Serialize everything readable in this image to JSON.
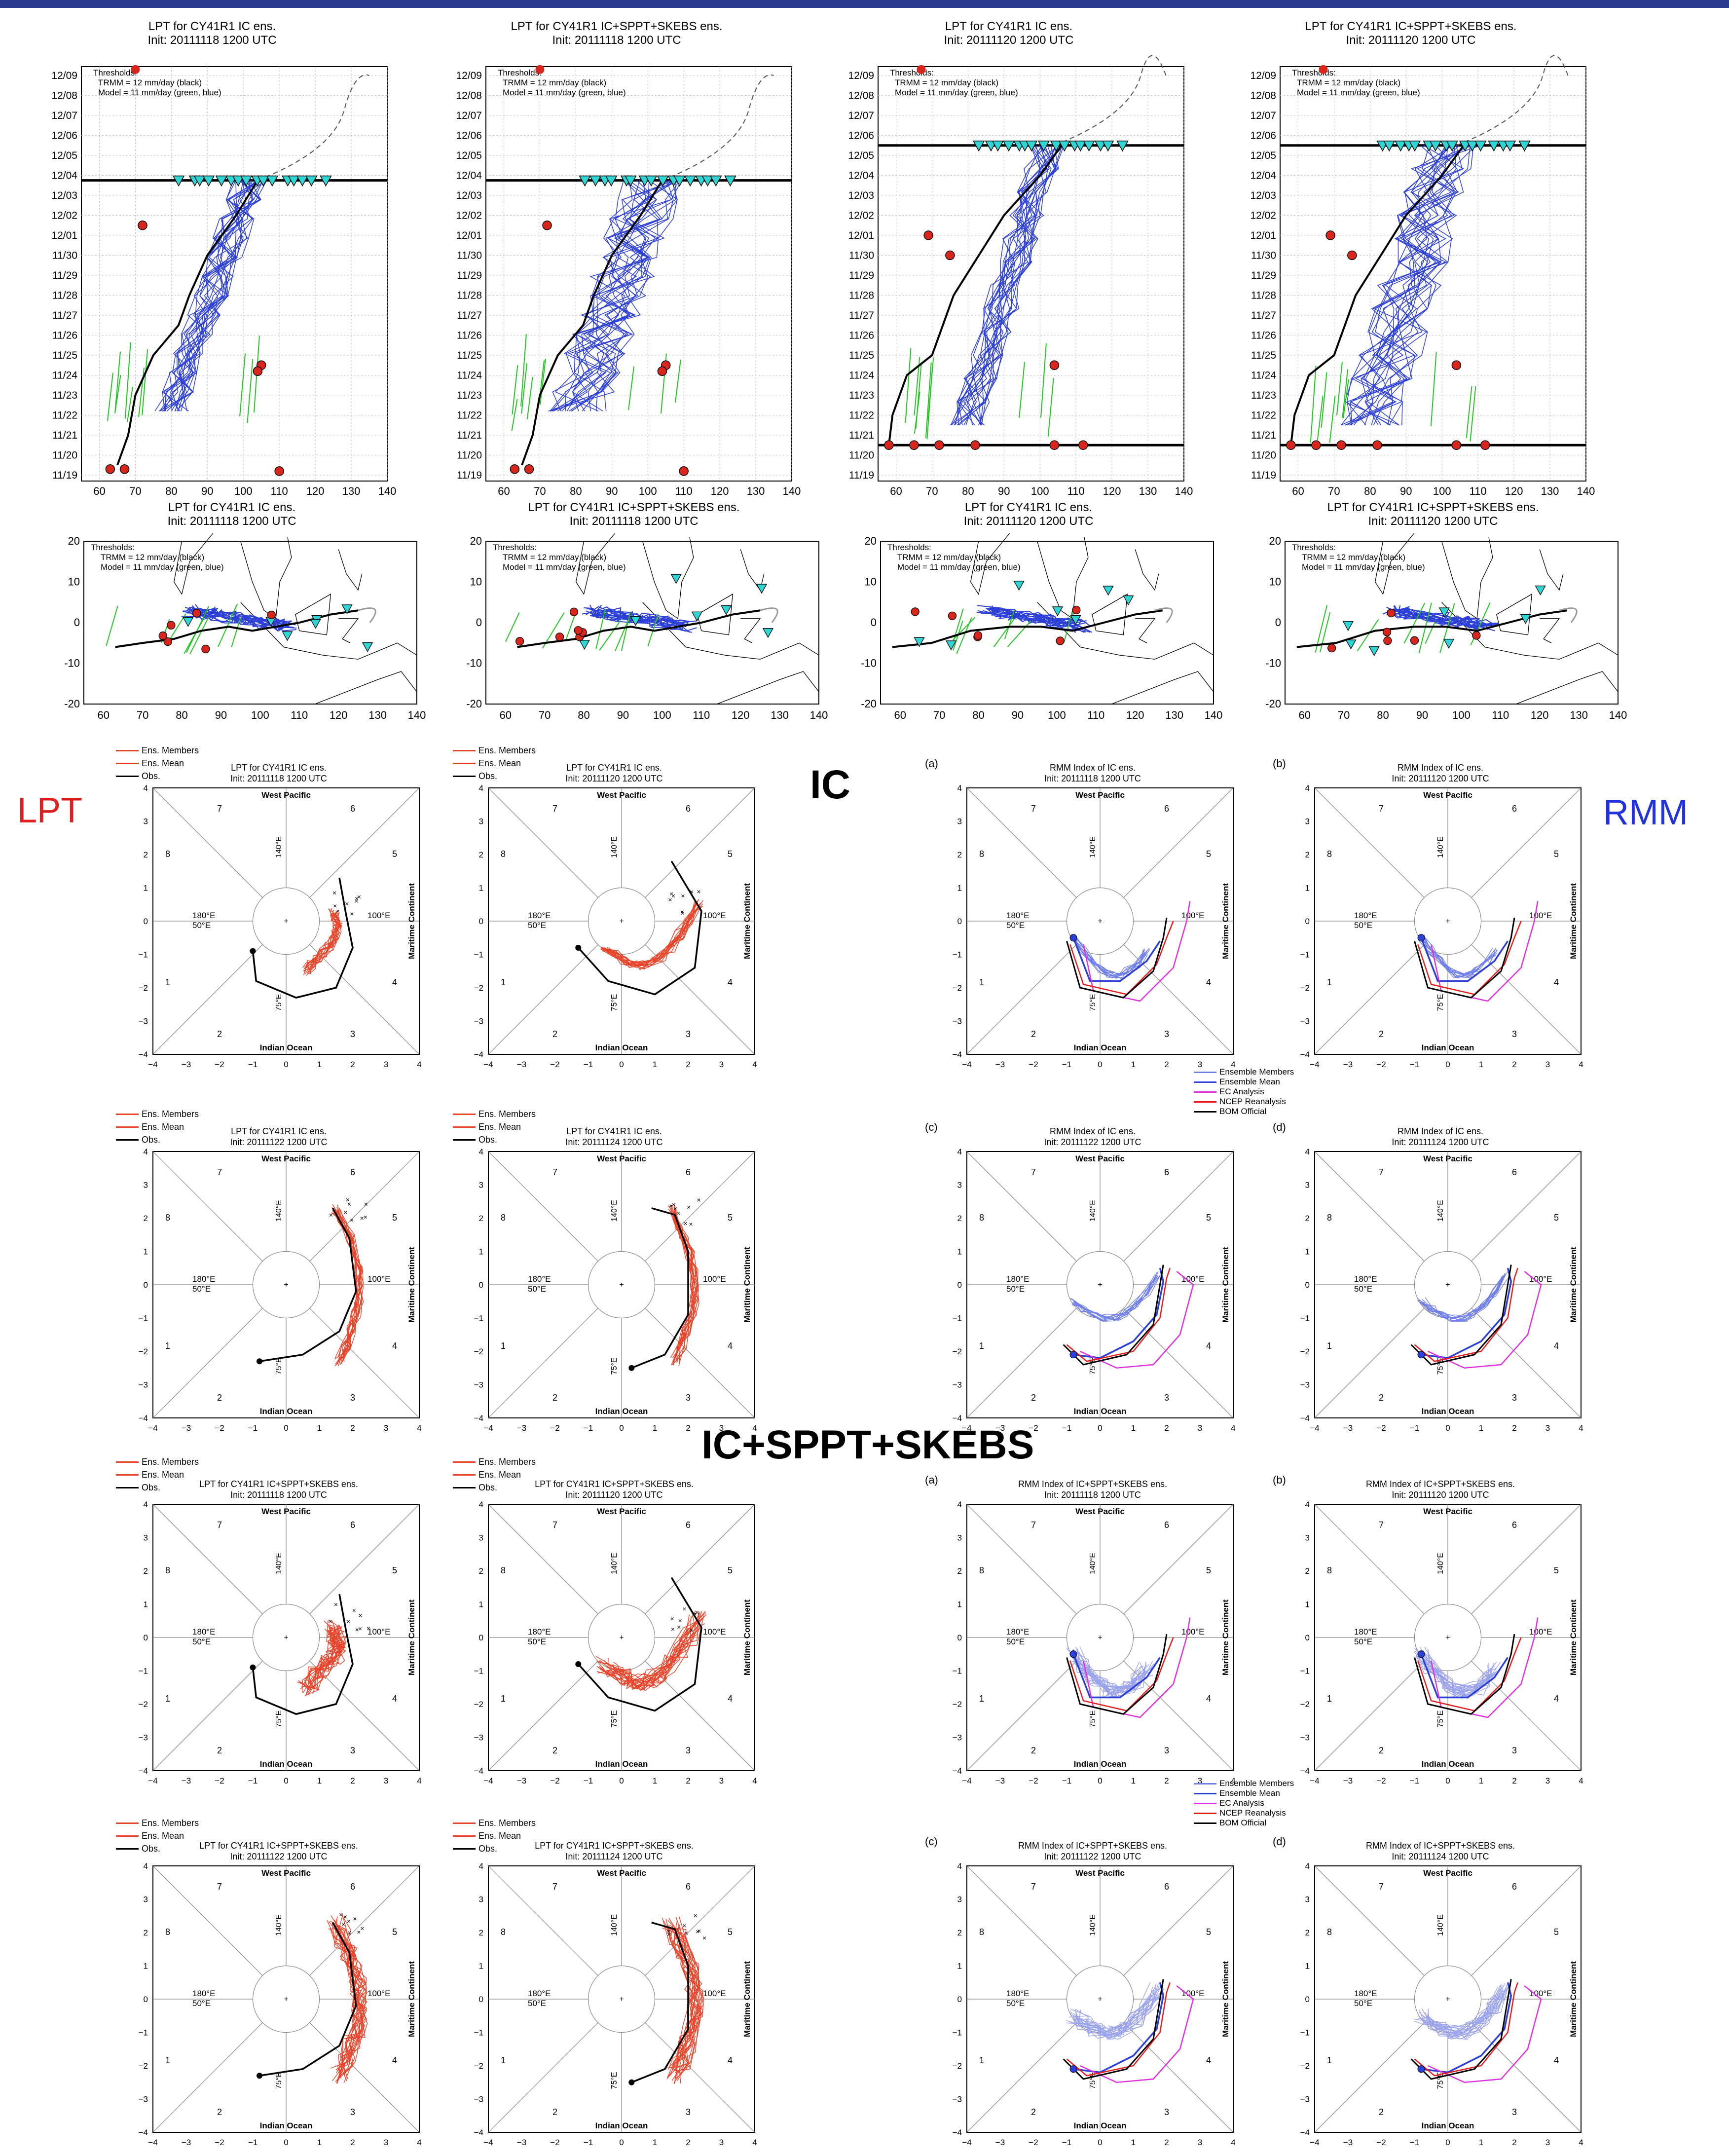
{
  "colors": {
    "top_bar": "#2a3a8f",
    "obs": "#000000",
    "ens_blue": "#2c3fd6",
    "ens_red": "#e8442a",
    "green": "#22c422",
    "cyan": "#2fd6d6",
    "marker_red": "#d9261c",
    "ec": "#e030e0",
    "ncep": "#e81a1a",
    "lpt_label": "#e02020",
    "rmm_label": "#2233dd"
  },
  "labels": {
    "lpt": "LPT",
    "ic": "IC",
    "rmm": "RMM",
    "ic_sppt": "IC+SPPT+SKEBS"
  },
  "top_panels": [
    {
      "title": "LPT for CY41R1 IC ens.",
      "init": "Init: 20111118 1200 UTC"
    },
    {
      "title": "LPT for CY41R1 IC+SPPT+SKEBS ens.",
      "init": "Init: 20111118 1200 UTC"
    },
    {
      "title": "LPT for CY41R1 IC ens.",
      "init": "Init: 20111120 1200 UTC"
    },
    {
      "title": "LPT for CY41R1 IC+SPPT+SKEBS ens.",
      "init": "Init: 20111120 1200 UTC"
    }
  ],
  "thresholds": {
    "heading": "Thresholds:",
    "trmm": "TRMM = 12 mm/day (black)",
    "model": "Model = 11 mm/day (green, blue)"
  },
  "phase_legend_lpt": [
    "Ens. Members",
    "Ens. Mean",
    "Obs."
  ],
  "phase_legend_rmm": [
    "Ensemble Members",
    "Ensemble Mean",
    "EC Analysis",
    "NCEP Reanalysis",
    "BOM Official"
  ],
  "phase_text": {
    "west_pacific": "West Pacific",
    "indian_ocean": "Indian Ocean",
    "maritime": "Maritime Continent",
    "lon140": "140°E",
    "lon75": "75°E",
    "lon180": "180°E",
    "lon50": "50°E",
    "lon100": "100°E",
    "phases": [
      "1",
      "2",
      "3",
      "4",
      "5",
      "6",
      "7",
      "8"
    ]
  },
  "phase_panels": [
    {
      "title": "LPT for CY41R1 IC ens.",
      "init": "Init: 20111118 1200 UTC",
      "tag": ""
    },
    {
      "title": "LPT for CY41R1 IC ens.",
      "init": "Init: 20111120 1200 UTC",
      "tag": ""
    },
    {
      "title": "RMM Index of IC ens.",
      "init": "Init: 20111118 1200 UTC",
      "tag": "(a)"
    },
    {
      "title": "RMM Index of IC ens.",
      "init": "Init: 20111120 1200 UTC",
      "tag": "(b)"
    },
    {
      "title": "LPT for CY41R1 IC ens.",
      "init": "Init: 20111122 1200 UTC",
      "tag": ""
    },
    {
      "title": "LPT for CY41R1 IC ens.",
      "init": "Init: 20111124 1200 UTC",
      "tag": ""
    },
    {
      "title": "RMM Index of IC ens.",
      "init": "Init: 20111122 1200 UTC",
      "tag": "(c)"
    },
    {
      "title": "RMM Index of IC ens.",
      "init": "Init: 20111124 1200 UTC",
      "tag": "(d)"
    },
    {
      "title": "LPT for CY41R1 IC+SPPT+SKEBS ens.",
      "init": "Init: 20111118 1200 UTC",
      "tag": ""
    },
    {
      "title": "LPT for CY41R1 IC+SPPT+SKEBS ens.",
      "init": "Init: 20111120 1200 UTC",
      "tag": ""
    },
    {
      "title": "RMM Index of IC+SPPT+SKEBS ens.",
      "init": "Init: 20111118 1200 UTC",
      "tag": "(a)"
    },
    {
      "title": "RMM Index of IC+SPPT+SKEBS ens.",
      "init": "Init: 20111120 1200 UTC",
      "tag": "(b)"
    },
    {
      "title": "LPT for CY41R1 IC+SPPT+SKEBS ens.",
      "init": "Init: 20111122 1200 UTC",
      "tag": ""
    },
    {
      "title": "LPT for CY41R1 IC+SPPT+SKEBS ens.",
      "init": "Init: 20111124 1200 UTC",
      "tag": ""
    },
    {
      "title": "RMM Index of IC+SPPT+SKEBS ens.",
      "init": "Init: 20111122 1200 UTC",
      "tag": "(c)"
    },
    {
      "title": "RMM Index of IC+SPPT+SKEBS ens.",
      "init": "Init: 20111124 1200 UTC",
      "tag": "(d)"
    }
  ],
  "chart_data": [
    {
      "type": "line",
      "name": "time-longitude",
      "x_ticks": [
        60,
        70,
        80,
        90,
        100,
        110,
        120,
        130,
        140
      ],
      "y_ticks_A": [
        "11/19",
        "11/20",
        "11/21",
        "11/22",
        "11/23",
        "11/24",
        "11/25",
        "11/26",
        "11/27",
        "11/28",
        "11/29",
        "11/30",
        "12/01",
        "12/02",
        "12/03",
        "12/04",
        "12/05",
        "12/06",
        "12/07",
        "12/08",
        "12/09"
      ],
      "y_ticks_B": [
        "11/19",
        "11/20",
        "11/21",
        "11/22",
        "11/23",
        "11/24",
        "11/25",
        "11/26",
        "11/27",
        "11/28",
        "11/29",
        "11/30",
        "12/01",
        "12/02",
        "12/03",
        "12/04",
        "12/05",
        "12/06",
        "12/07",
        "12/08",
        "12/09"
      ],
      "forecast_end_line_A": "12/03 18 UTC",
      "forecast_init_line_B": "11/20 12 UTC",
      "forecast_end_line_B": "12/05 12 UTC"
    },
    {
      "type": "line",
      "name": "lat-lon map",
      "x_ticks": [
        60,
        70,
        80,
        90,
        100,
        110,
        120,
        130,
        140
      ],
      "y_ticks": [
        -20,
        -10,
        0,
        10,
        20
      ]
    },
    {
      "type": "scatter",
      "name": "RMM phase diagram",
      "axis_ticks": [
        -4,
        -3,
        -2,
        -1,
        0,
        1,
        2,
        3,
        4
      ],
      "xlim": [
        -4,
        4
      ],
      "ylim": [
        -4,
        4
      ]
    }
  ]
}
